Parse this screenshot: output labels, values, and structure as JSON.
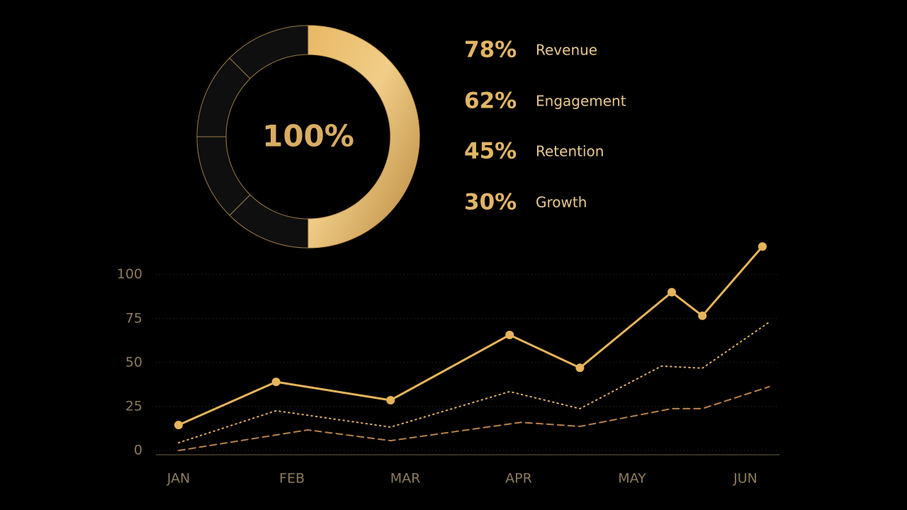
{
  "chart_data": [
    {
      "type": "donut",
      "center_label": "100%",
      "value": 50,
      "color": "#d9a94e"
    },
    {
      "type": "line",
      "xticks": [
        {
          "value": 0,
          "label": "JAN"
        },
        {
          "value": 1,
          "label": "FEB"
        },
        {
          "value": 2,
          "label": "MAR"
        },
        {
          "value": 3,
          "label": "APR"
        },
        {
          "value": 4,
          "label": "MAY"
        },
        {
          "value": 5,
          "label": "JUN"
        }
      ],
      "xlim": [
        -0.2,
        5.3
      ],
      "ylim": [
        0,
        118
      ],
      "yticks": [
        0,
        25,
        50,
        75,
        100
      ],
      "grid": true,
      "series": [
        {
          "color": "#e6b45c",
          "style": "solid",
          "markers": true,
          "x": [
            0,
            0.86,
            1.87,
            2.92,
            3.54,
            4.35,
            4.62,
            5.15
          ],
          "values": [
            14.5,
            39,
            28.6,
            65.7,
            47,
            90,
            76.6,
            116
          ]
        },
        {
          "color": "#e0b066",
          "style": "dotted",
          "markers": false,
          "x": [
            0,
            0.86,
            1.87,
            2.92,
            3.54,
            4.26,
            4.62,
            5.21
          ],
          "values": [
            4.4,
            22.6,
            13.3,
            33.5,
            23.8,
            48,
            46.8,
            73
          ]
        },
        {
          "color": "#b8804a",
          "style": "dashed",
          "markers": false,
          "x": [
            0,
            1.14,
            1.87,
            3.02,
            3.54,
            4.35,
            4.62,
            5.21
          ],
          "values": [
            0,
            11.7,
            5.6,
            16,
            13.7,
            23.8,
            23.8,
            36.3
          ]
        }
      ]
    }
  ],
  "stats": [
    {
      "value": "78%",
      "label": "Revenue"
    },
    {
      "value": "62%",
      "label": "Engagement"
    },
    {
      "value": "45%",
      "label": "Retention"
    },
    {
      "value": "30%",
      "label": "Growth"
    }
  ]
}
